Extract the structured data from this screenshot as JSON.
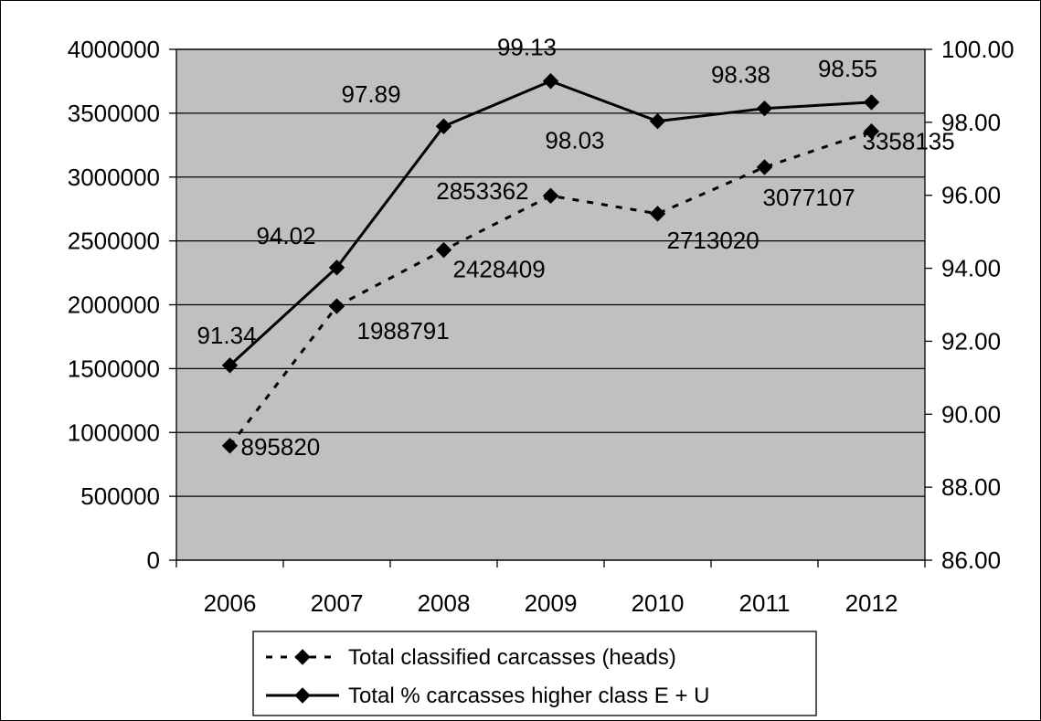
{
  "chart_data": {
    "type": "line",
    "categories": [
      "2006",
      "2007",
      "2008",
      "2009",
      "2010",
      "2011",
      "2012"
    ],
    "series": [
      {
        "name": "Total classified carcasses  (heads)",
        "axis": "left",
        "line_style": "dashed",
        "color": "#000000",
        "values": [
          895820,
          1988791,
          2428409,
          2853362,
          2713020,
          3077107,
          3358135
        ],
        "labels": [
          "895820",
          "1988791",
          "2428409",
          "2853362",
          "2713020",
          "3077107",
          "3358135"
        ]
      },
      {
        "name": "Total % carcasses higher class E + U",
        "axis": "right",
        "line_style": "solid",
        "color": "#000000",
        "values": [
          91.34,
          94.02,
          97.89,
          99.13,
          98.03,
          98.38,
          98.55
        ],
        "labels": [
          "91.34",
          "94.02",
          "97.89",
          "99.13",
          "98.03",
          "98.38",
          "98.55"
        ]
      }
    ],
    "y_left": {
      "lim": [
        0,
        4000000
      ],
      "ticks": [
        "0",
        "500000",
        "1000000",
        "1500000",
        "2000000",
        "2500000",
        "3000000",
        "3500000",
        "4000000"
      ]
    },
    "y_right": {
      "lim": [
        86,
        100
      ],
      "ticks": [
        "86.00",
        "88.00",
        "90.00",
        "92.00",
        "94.00",
        "96.00",
        "98.00",
        "100.00"
      ]
    },
    "grid": true,
    "plot_background": "#c0c0c0",
    "legend_position": "bottom",
    "marker": "diamond"
  }
}
